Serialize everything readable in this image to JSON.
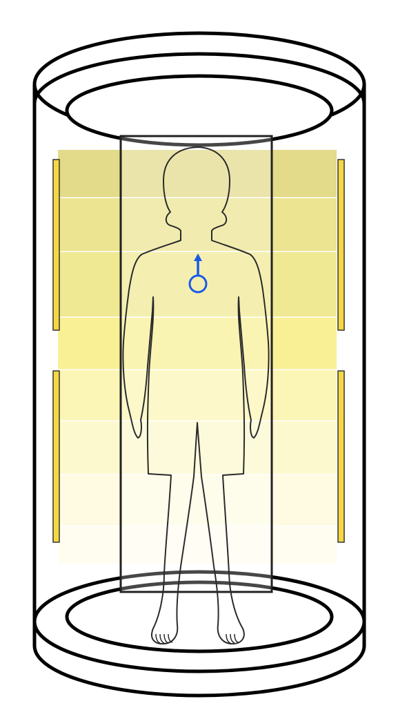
{
  "diagram": {
    "colors": {
      "outline": "#000000",
      "background": "#ffffff",
      "panel_fill": "#f5d742",
      "panel_stroke": "#333333",
      "body_outline": "#2a2a2a",
      "vector": "#1a5ae6",
      "band_separator": "#ffffff",
      "board_fill": "#ffffff",
      "board_stroke": "#222222"
    },
    "bands": [
      {
        "color": "#e3da8a"
      },
      {
        "color": "#ece491"
      },
      {
        "color": "#f0e994"
      },
      {
        "color": "#f9f096"
      },
      {
        "color": "#fbf6b5"
      },
      {
        "color": "#fdf9cf"
      },
      {
        "color": "#fefbe2"
      },
      {
        "color": "#fffdf0"
      }
    ],
    "icons": {
      "magnetic_moment": "upward-arrow-with-circle"
    }
  }
}
